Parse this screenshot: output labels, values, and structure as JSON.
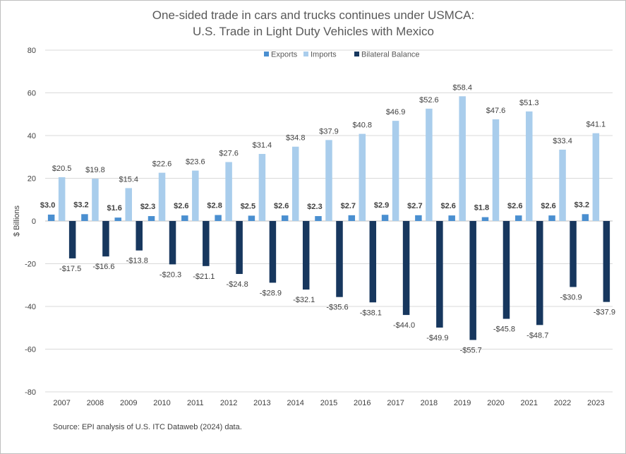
{
  "chart_data": {
    "type": "bar",
    "title": "One-sided trade in cars and trucks continues under USMCA:",
    "subtitle": "U.S. Trade in Light Duty Vehicles with Mexico",
    "xlabel": "",
    "ylabel": "$ Billions",
    "ylim": [
      -80,
      80
    ],
    "yticks": [
      -80,
      -60,
      -40,
      -20,
      0,
      20,
      40,
      60,
      80
    ],
    "ytick_labels": [
      "-80",
      "-60",
      "-40",
      "-20",
      "0",
      "20",
      "40",
      "60",
      "80"
    ],
    "grid": "horizontal",
    "legend_position": "top-center",
    "categories": [
      "2007",
      "2008",
      "2009",
      "2010",
      "2011",
      "2012",
      "2013",
      "2014",
      "2015",
      "2016",
      "2017",
      "2018",
      "2019",
      "2020",
      "2021",
      "2022",
      "2023"
    ],
    "series": [
      {
        "name": "Exports",
        "color": "#4a8fd0",
        "values": [
          3.0,
          3.2,
          1.6,
          2.3,
          2.6,
          2.8,
          2.5,
          2.6,
          2.3,
          2.7,
          2.9,
          2.7,
          2.6,
          1.8,
          2.6,
          2.6,
          3.2
        ],
        "labels": [
          "$3.0",
          "$3.2",
          "$1.6",
          "$2.3",
          "$2.6",
          "$2.8",
          "$2.5",
          "$2.6",
          "$2.3",
          "$2.7",
          "$2.9",
          "$2.7",
          "$2.6",
          "$1.8",
          "$2.6",
          "$2.6",
          "$3.2"
        ]
      },
      {
        "name": "Imports",
        "color": "#a9cdec",
        "values": [
          20.5,
          19.8,
          15.4,
          22.6,
          23.6,
          27.6,
          31.4,
          34.8,
          37.9,
          40.8,
          46.9,
          52.6,
          58.4,
          47.6,
          51.3,
          33.4,
          41.1
        ],
        "labels": [
          "$20.5",
          "$19.8",
          "$15.4",
          "$22.6",
          "$23.6",
          "$27.6",
          "$31.4",
          "$34.8",
          "$37.9",
          "$40.8",
          "$46.9",
          "$52.6",
          "$58.4",
          "$47.6",
          "$51.3",
          "$33.4",
          "$41.1"
        ]
      },
      {
        "name": "Bilateral Balance",
        "color": "#17375e",
        "values": [
          -17.5,
          -16.6,
          -13.8,
          -20.3,
          -21.1,
          -24.8,
          -28.9,
          -32.1,
          -35.6,
          -38.1,
          -44.0,
          -49.9,
          -55.7,
          -45.8,
          -48.7,
          -30.9,
          -37.9
        ],
        "labels": [
          "-$17.5",
          "-$16.6",
          "-$13.8",
          "-$20.3",
          "-$21.1",
          "-$24.8",
          "-$28.9",
          "-$32.1",
          "-$35.6",
          "-$38.1",
          "-$44.0",
          "-$49.9",
          "-$55.7",
          "-$45.8",
          "-$48.7",
          "-$30.9",
          "-$37.9"
        ]
      }
    ],
    "source": "Source: EPI analysis of U.S. ITC Dataweb (2024) data."
  }
}
